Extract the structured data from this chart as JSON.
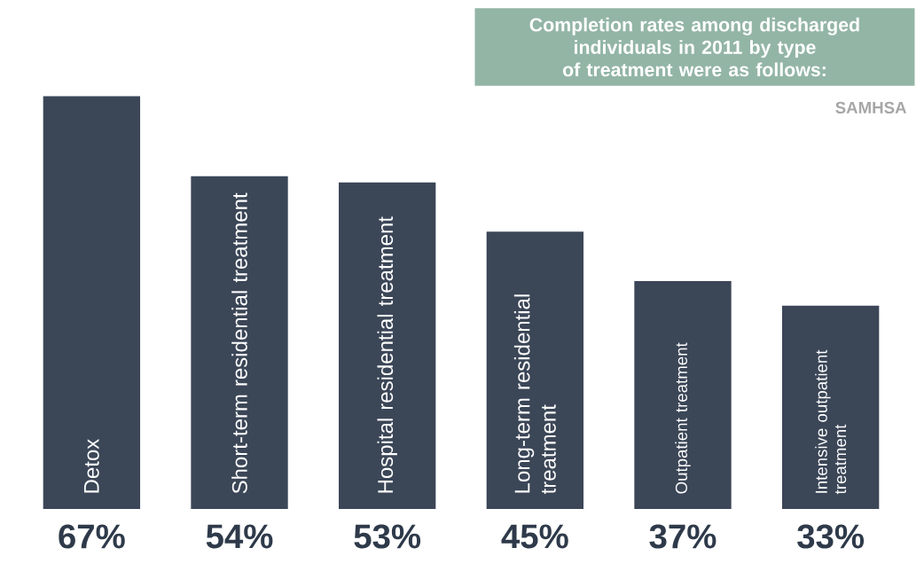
{
  "chart_data": {
    "type": "bar",
    "title": "Completion rates among discharged individuals in 2011 by type of treatment were as follows:",
    "annotations": [
      "SAMHSA"
    ],
    "categories": [
      "Detox",
      "Short-term residential treatment",
      "Hospital residential treatment",
      "Long-term residential treatment",
      "Outpatient treatment",
      "Intensive outpatient treatment"
    ],
    "values": [
      67,
      54,
      53,
      45,
      37,
      33
    ],
    "value_labels": [
      "67%",
      "54%",
      "53%",
      "45%",
      "37%",
      "33%"
    ],
    "color": "#3b4657"
  }
}
